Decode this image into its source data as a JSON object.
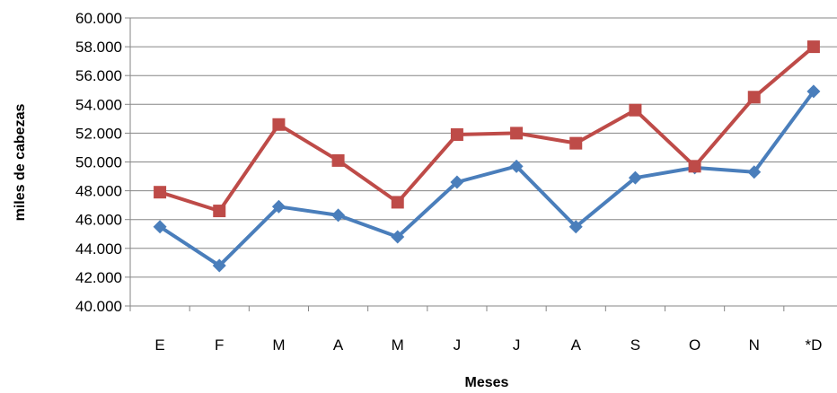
{
  "chart_data": {
    "type": "line",
    "title": "",
    "xlabel": "Meses",
    "ylabel": "miles de cabezas",
    "categories": [
      "E",
      "F",
      "M",
      "A",
      "M",
      "J",
      "J",
      "A",
      "S",
      "O",
      "N",
      "*D"
    ],
    "ylim": [
      40000,
      60000
    ],
    "ytick_step": 2000,
    "ytick_labels": [
      "40.000",
      "42.000",
      "44.000",
      "46.000",
      "48.000",
      "50.000",
      "52.000",
      "54.000",
      "56.000",
      "58.000",
      "60.000"
    ],
    "grid": true,
    "legend": "none",
    "series": [
      {
        "color": "#4a7ebb",
        "marker": "diamond",
        "values": [
          45500,
          42800,
          46900,
          46300,
          44800,
          48600,
          49700,
          45500,
          48900,
          49600,
          49300,
          54900
        ]
      },
      {
        "color": "#be4b48",
        "marker": "square",
        "values": [
          47900,
          46600,
          52600,
          50100,
          47200,
          51900,
          52000,
          51300,
          53600,
          49700,
          54500,
          58000
        ]
      }
    ]
  }
}
